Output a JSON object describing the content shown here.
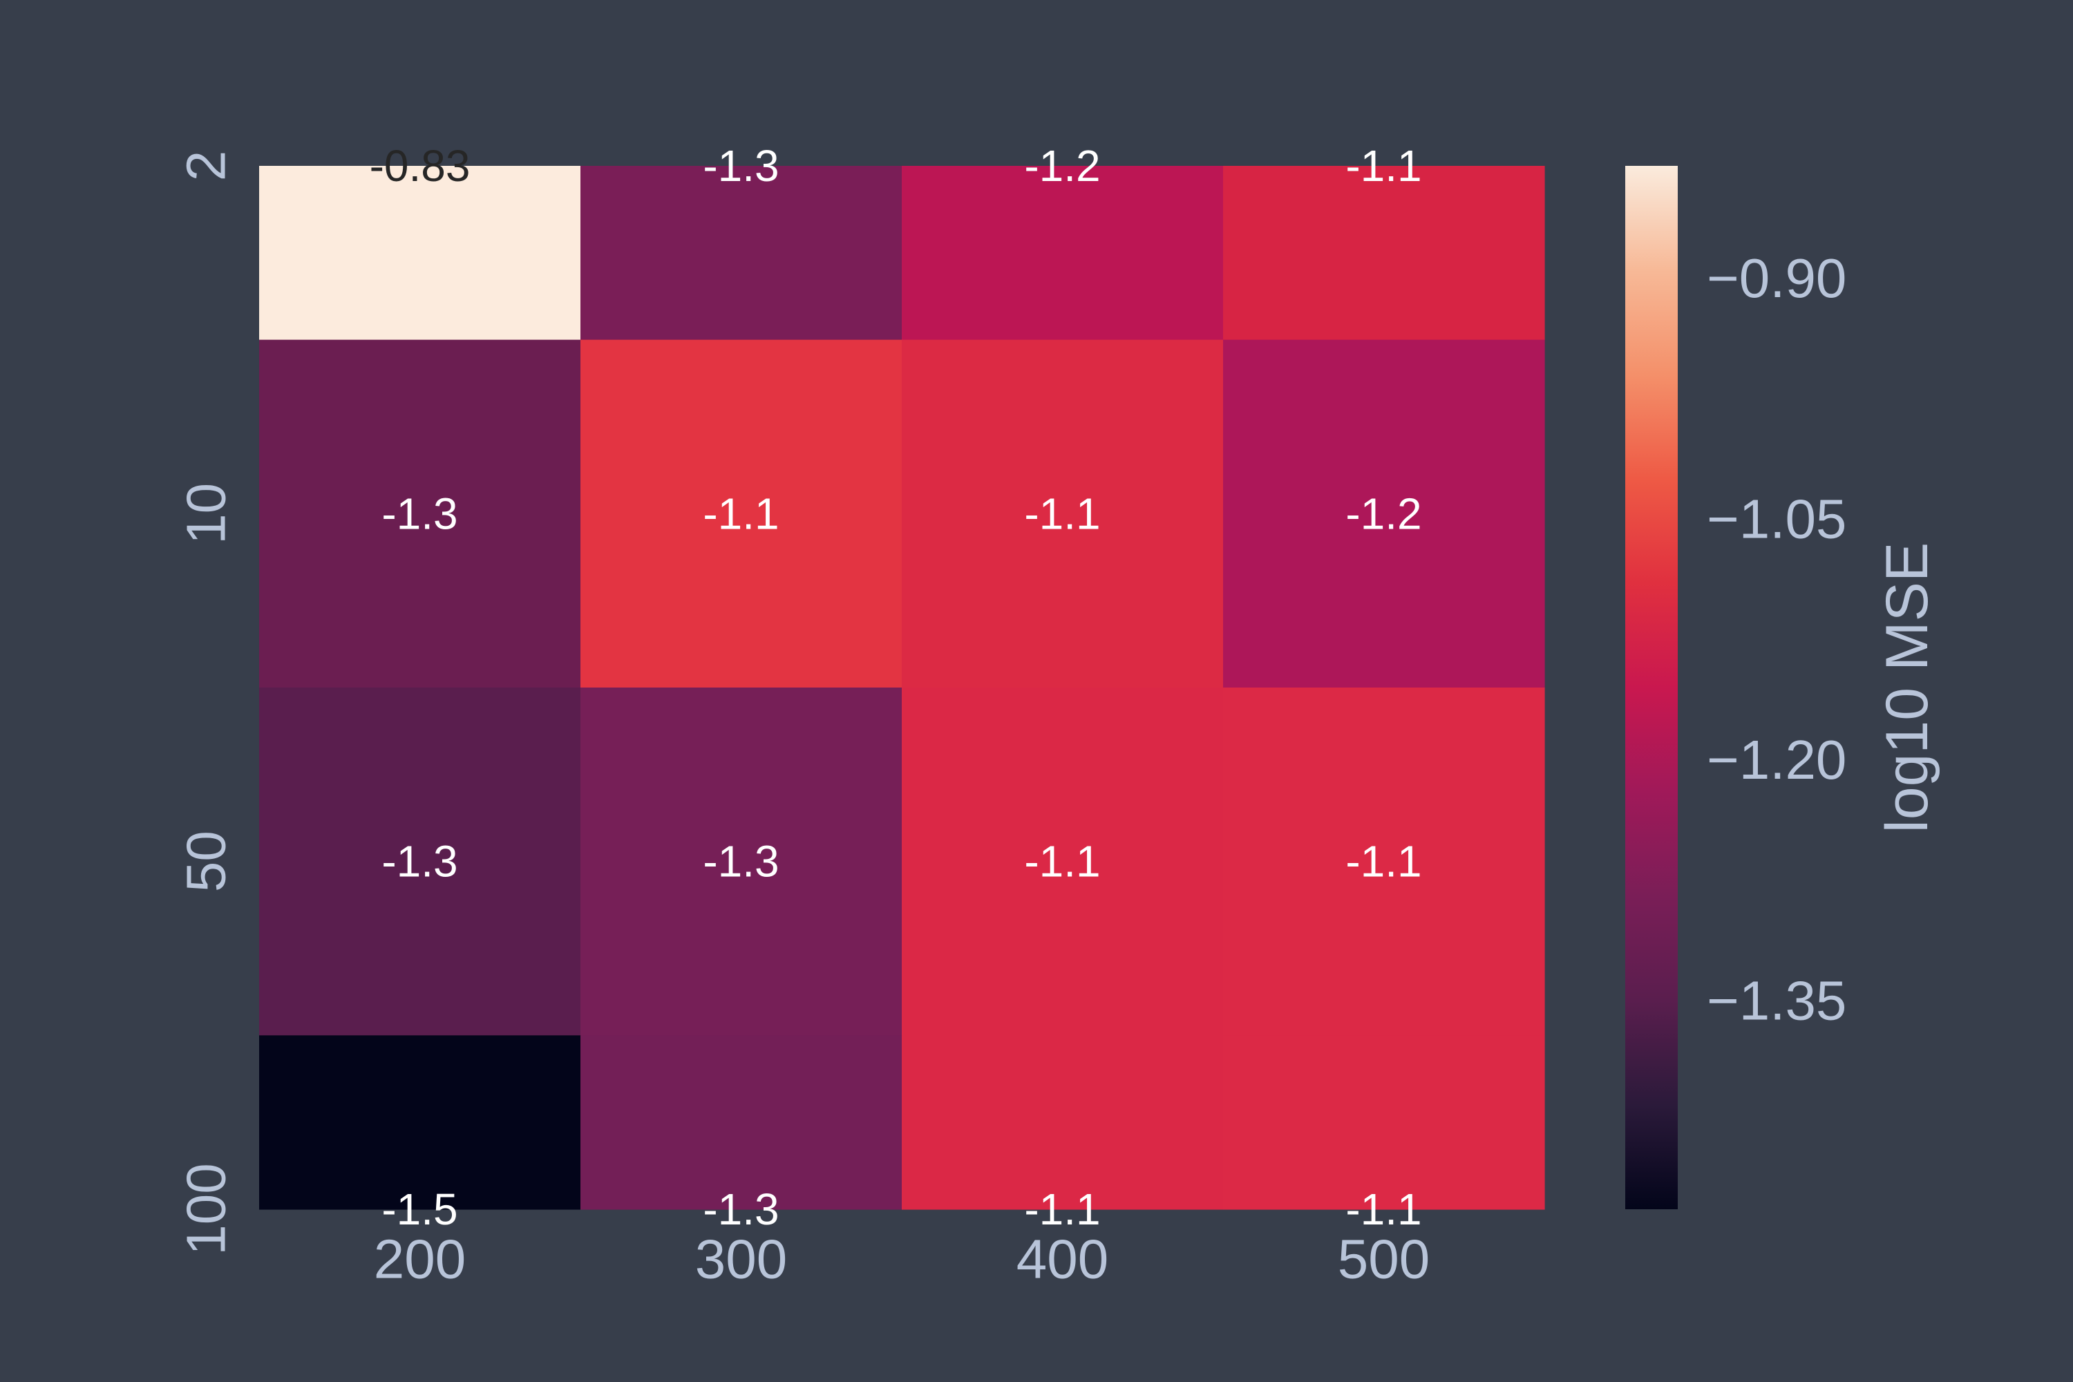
{
  "chart_data": {
    "type": "heatmap",
    "title": "",
    "xlabel": "",
    "ylabel": "",
    "x_categories": [
      "200",
      "300",
      "400",
      "500"
    ],
    "y_categories": [
      "2",
      "10",
      "50",
      "100"
    ],
    "row_heights": [
      0.5,
      1,
      1,
      0.5
    ],
    "values": [
      [
        -0.83,
        -1.3,
        -1.2,
        -1.1
      ],
      [
        -1.3,
        -1.1,
        -1.1,
        -1.2
      ],
      [
        -1.3,
        -1.3,
        -1.1,
        -1.1
      ],
      [
        -1.5,
        -1.3,
        -1.1,
        -1.1
      ]
    ],
    "cell_labels": [
      [
        "-0.83",
        "-1.3",
        "-1.2",
        "-1.1"
      ],
      [
        "-1.3",
        "-1.1",
        "-1.1",
        "-1.2"
      ],
      [
        "-1.3",
        "-1.3",
        "-1.1",
        "-1.1"
      ],
      [
        "-1.5",
        "-1.3",
        "-1.1",
        "-1.1"
      ]
    ],
    "cell_colors": [
      [
        "#fcebdd",
        "#7a1e57",
        "#bc1654",
        "#d72444"
      ],
      [
        "#6b1e51",
        "#e33442",
        "#dc2a44",
        "#ad1759"
      ],
      [
        "#5a1e4e",
        "#761f57",
        "#db2846",
        "#dc2946"
      ],
      [
        "#03051a",
        "#731f57",
        "#db2846",
        "#dc2946"
      ]
    ],
    "colorbar": {
      "label": "log10 MSE",
      "min": -1.48,
      "max": -0.83,
      "ticks": [
        -0.9,
        -1.05,
        -1.2,
        -1.35
      ],
      "tick_labels": [
        "−0.90",
        "−1.05",
        "−1.20",
        "−1.35"
      ],
      "stops": [
        "#03051a",
        "#2b1a3a",
        "#5a1e4e",
        "#7a1e57",
        "#a01959",
        "#c9184f",
        "#e0303f",
        "#ee5a45",
        "#f4906a",
        "#f7b997",
        "#faebdd"
      ]
    },
    "colors": {
      "background": "#373e4b",
      "tick_text": "#b8c4d9",
      "light_cell_text": "#262626",
      "dark_cell_text": "#ffffff"
    }
  }
}
